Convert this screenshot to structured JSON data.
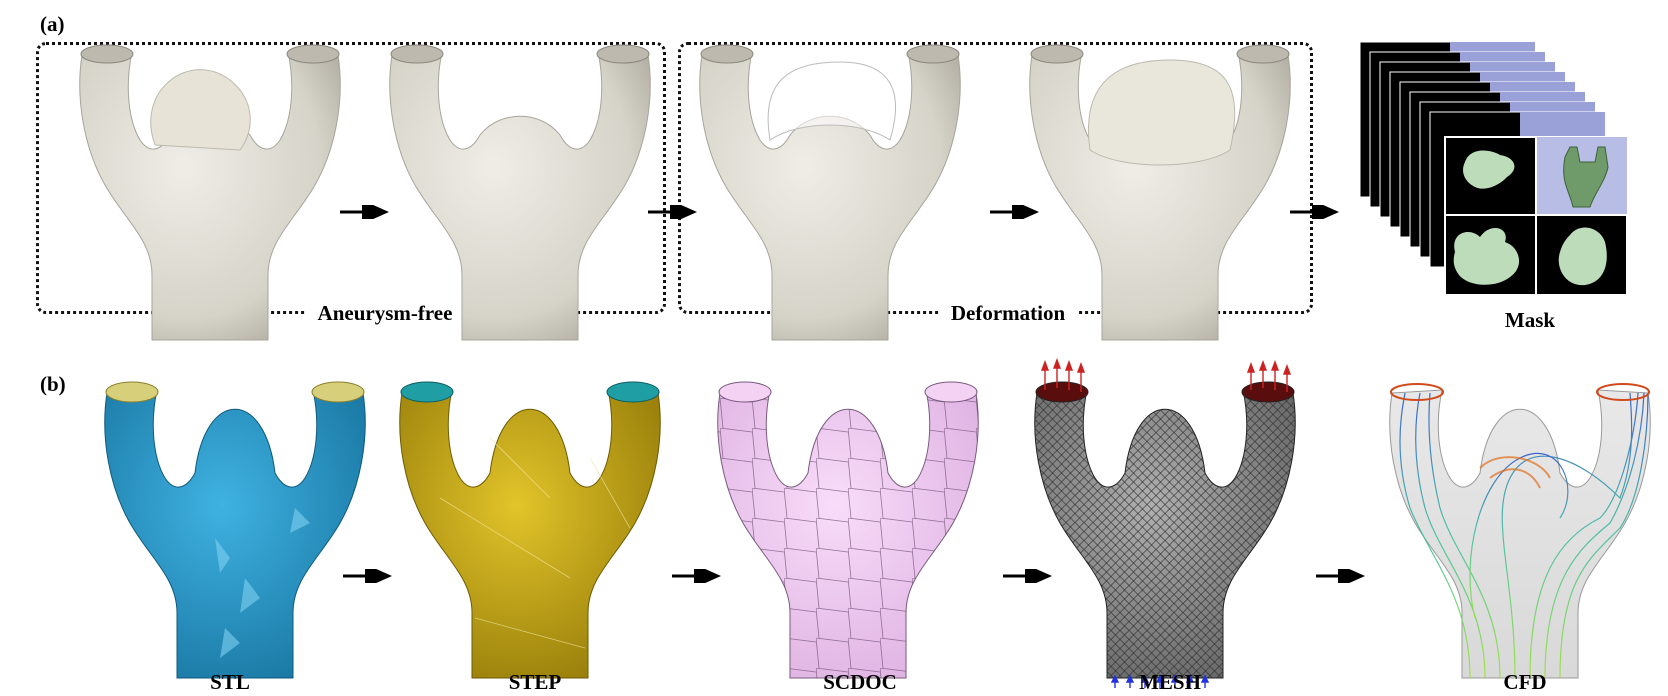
{
  "panels": {
    "a": {
      "label": "(a)",
      "group_labels": {
        "aneurysm_free": "Aneurysm-free",
        "deformation": "Deformation"
      },
      "mask_label": "Mask"
    },
    "b": {
      "label": "(b)",
      "stages": [
        "STL",
        "STEP",
        "SCDOC",
        "MESH",
        "CFD"
      ]
    }
  },
  "colors": {
    "vessel_gray": "#d9d6cc",
    "stl_blue": "#2596c8",
    "stl_cap": "#d8cf7a",
    "step_yellow": "#c9a810",
    "step_cap": "#1f9ea3",
    "scdoc_pink": "#f0c4f2",
    "mesh_gray": "#8c8c8c",
    "mesh_cap": "#5a0d0d",
    "inlet_arrow": "#2233dd",
    "outlet_arrow": "#cc2222",
    "mask_fill": "#bcdcba",
    "mask_bg": "#000000"
  },
  "icons": [
    "arrow-right-icon"
  ]
}
